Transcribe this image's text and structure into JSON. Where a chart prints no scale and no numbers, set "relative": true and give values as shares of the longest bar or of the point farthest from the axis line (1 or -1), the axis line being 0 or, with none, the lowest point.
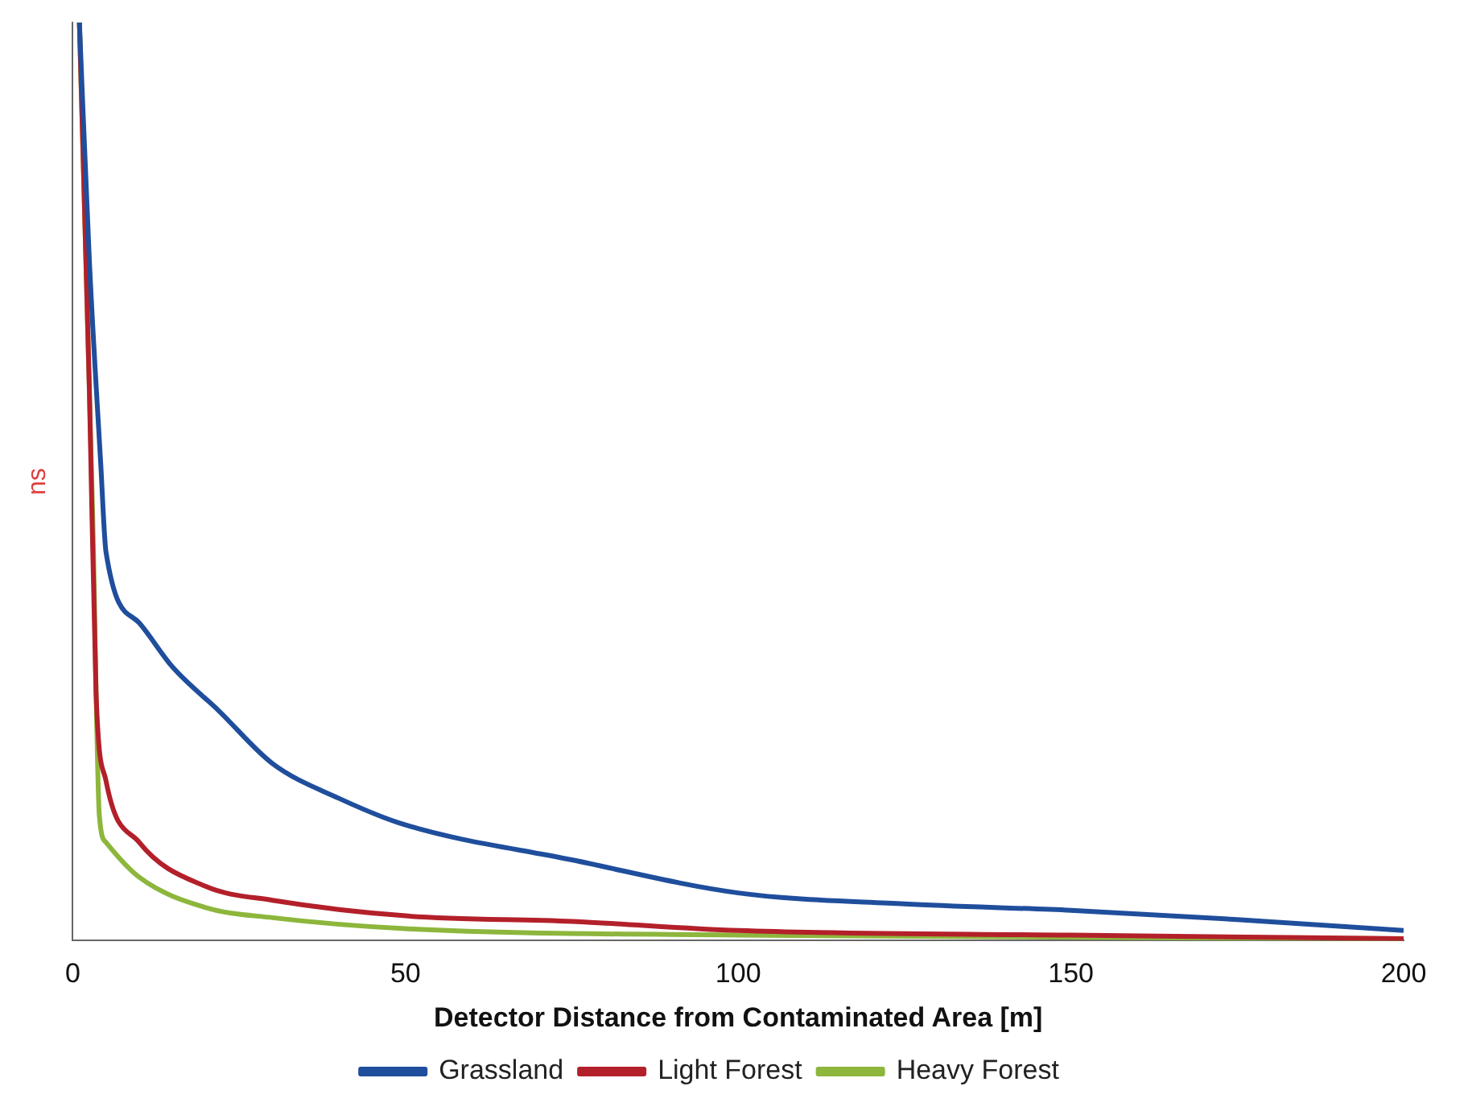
{
  "chart_data": {
    "type": "line",
    "relative": true,
    "xlabel": "Detector Distance from Contaminated Area [m]",
    "ylabel": "ns",
    "xlim": [
      0,
      200
    ],
    "xticks": [
      0,
      50,
      100,
      150,
      200
    ],
    "legend": "bottom",
    "marker": "none",
    "line_style": "solid",
    "grid": false,
    "series": [
      {
        "name": "Grassland",
        "color": "#1f4e9c",
        "x": [
          1,
          2.5,
          4.2,
          5,
          10,
          15,
          22,
          30,
          40,
          50,
          75,
          100,
          125,
          150,
          175,
          200
        ],
        "values": [
          1.0,
          0.74,
          0.52,
          0.423,
          0.346,
          0.298,
          0.25,
          0.193,
          0.155,
          0.126,
          0.088,
          0.052,
          0.04,
          0.033,
          0.023,
          0.011
        ]
      },
      {
        "name": "Light Forest",
        "color": "#b3202a",
        "x": [
          1,
          2.5,
          3.5,
          5,
          10,
          20,
          30,
          50,
          75,
          100,
          150,
          200
        ],
        "values": [
          1.0,
          0.6,
          0.27,
          0.174,
          0.107,
          0.059,
          0.044,
          0.027,
          0.021,
          0.011,
          0.006,
          0.002
        ]
      },
      {
        "name": "Heavy Forest",
        "color": "#8db63c",
        "x": [
          1,
          3,
          4,
          5,
          10,
          20,
          30,
          50,
          100,
          200
        ],
        "values": [
          1.0,
          0.461,
          0.136,
          0.107,
          0.069,
          0.036,
          0.025,
          0.013,
          0.006,
          0.002
        ]
      }
    ]
  }
}
